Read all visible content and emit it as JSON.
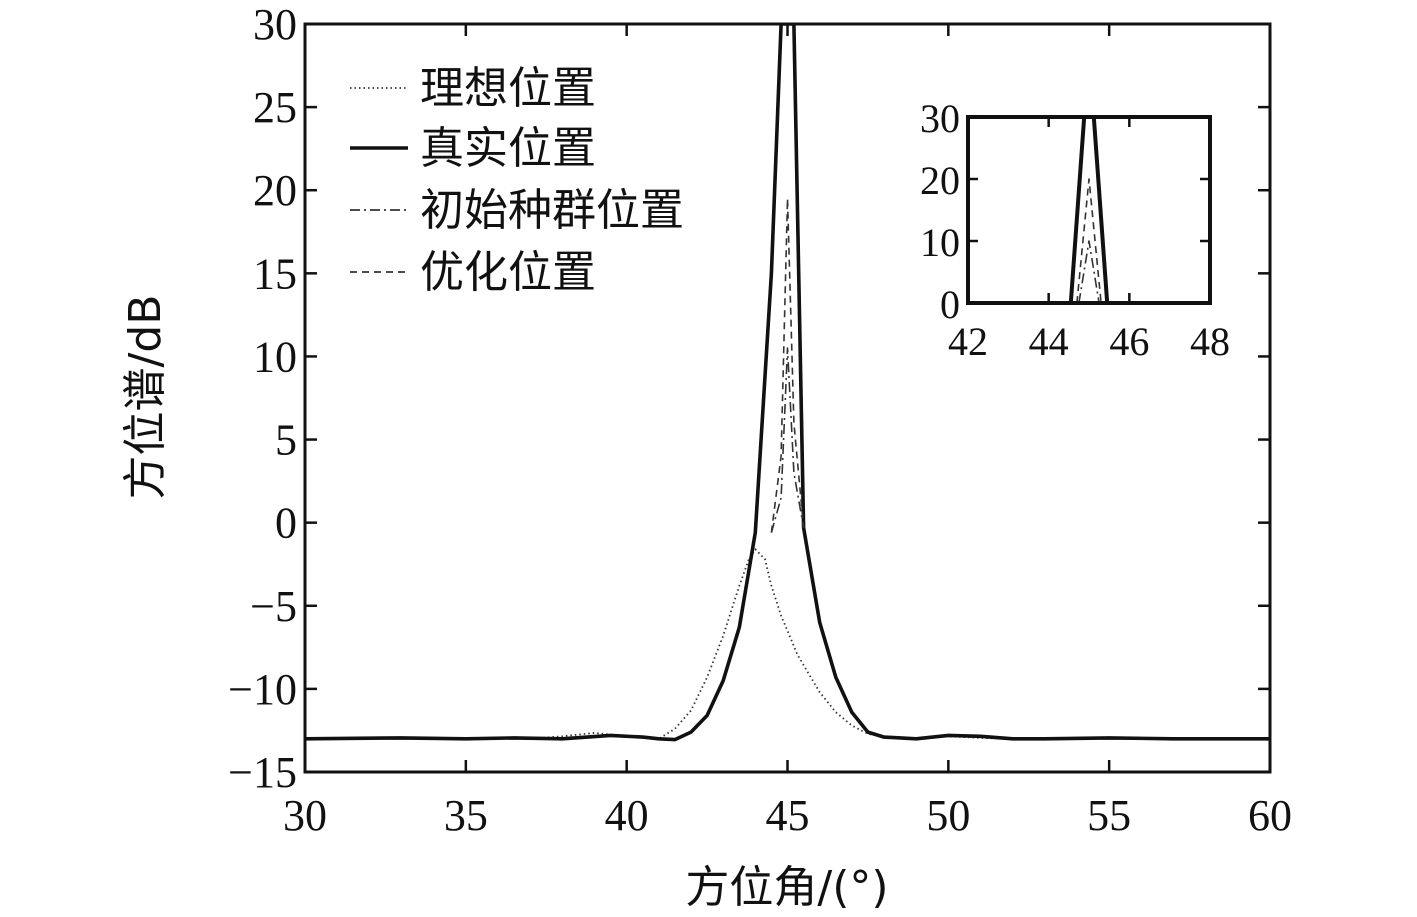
{
  "chart_data": [
    {
      "type": "line",
      "title": "",
      "xlabel": "方位角/(°)",
      "ylabel": "方位谱/dB",
      "xlim": [
        30,
        60
      ],
      "ylim": [
        -15,
        30
      ],
      "xticks": [
        30,
        35,
        40,
        45,
        50,
        55,
        60
      ],
      "yticks": [
        -15,
        -10,
        -5,
        0,
        5,
        10,
        15,
        20,
        25,
        30
      ],
      "xtick_labels": [
        "30",
        "35",
        "40",
        "45",
        "50",
        "55",
        "60"
      ],
      "ytick_labels": [
        "−15",
        "−10",
        "−5",
        "0",
        "5",
        "10",
        "15",
        "20",
        "25",
        "30"
      ],
      "grid": false,
      "legend_position": "top-left",
      "series": [
        {
          "name": "理想位置",
          "style": "dotted",
          "color": "#333333",
          "x": [
            30,
            33,
            35,
            37,
            38,
            39,
            40,
            41,
            41.5,
            42,
            42.5,
            43,
            43.5,
            43.8,
            44,
            44.3,
            44.5,
            44.8,
            45,
            45.3,
            45.6,
            46,
            46.5,
            47,
            47.5,
            48,
            49,
            50,
            51,
            52,
            55,
            60
          ],
          "y": [
            -13,
            -12.95,
            -12.95,
            -13,
            -12.85,
            -12.65,
            -12.85,
            -13,
            -12.4,
            -11.3,
            -9.3,
            -6.8,
            -3.8,
            -2.2,
            -1.6,
            -2.2,
            -3.8,
            -5.6,
            -6.5,
            -7.9,
            -8.9,
            -10.2,
            -11.4,
            -12.2,
            -12.7,
            -12.9,
            -13,
            -12.85,
            -12.95,
            -13,
            -12.95,
            -13
          ]
        },
        {
          "name": "真实位置",
          "style": "solid",
          "color": "#111111",
          "x": [
            30,
            33,
            35,
            36.5,
            38,
            39.5,
            40.5,
            41,
            41.5,
            42,
            42.5,
            43,
            43.5,
            44,
            44.5,
            44.8,
            45,
            45.2,
            45.5,
            46,
            46.5,
            47,
            47.5,
            48,
            49,
            50,
            51,
            52,
            53,
            55,
            57,
            60
          ],
          "y": [
            -13,
            -12.95,
            -13,
            -12.95,
            -13,
            -12.8,
            -12.9,
            -13,
            -13.05,
            -12.6,
            -11.6,
            -9.5,
            -6.3,
            -0.6,
            15,
            30,
            30,
            30,
            -0.3,
            -6,
            -9.3,
            -11.4,
            -12.6,
            -12.9,
            -13,
            -12.8,
            -12.85,
            -13,
            -13,
            -12.95,
            -13,
            -13
          ]
        },
        {
          "name": "初始种群位置",
          "style": "dashdot",
          "color": "#333333",
          "x": [
            44.5,
            44.8,
            45,
            45.2,
            45.5
          ],
          "y": [
            -0.6,
            1.5,
            10.5,
            3,
            -0.3
          ]
        },
        {
          "name": "优化位置",
          "style": "dashed",
          "color": "#333333",
          "x": [
            44.5,
            44.8,
            45,
            45.2,
            45.5
          ],
          "y": [
            -0.6,
            4,
            19.5,
            6,
            -0.3
          ]
        }
      ]
    },
    {
      "type": "line",
      "title": "",
      "xlabel": "",
      "ylabel": "",
      "xlim": [
        42,
        48
      ],
      "ylim": [
        0,
        30
      ],
      "xticks": [
        42,
        44,
        46,
        48
      ],
      "yticks": [
        0,
        10,
        20,
        30
      ],
      "xtick_labels": [
        "42",
        "44",
        "46",
        "48"
      ],
      "ytick_labels": [
        "0",
        "10",
        "20",
        "30"
      ],
      "grid": false,
      "legend_position": "none",
      "series": [
        {
          "name": "真实位置",
          "style": "solid",
          "color": "#111111",
          "x": [
            44.55,
            44.88,
            45.12,
            45.45
          ],
          "y": [
            0,
            30,
            30,
            0
          ]
        },
        {
          "name": "优化位置",
          "style": "dashed",
          "color": "#333333",
          "x": [
            44.7,
            45,
            45.3
          ],
          "y": [
            0,
            20,
            0
          ]
        },
        {
          "name": "初始种群位置",
          "style": "dashdot",
          "color": "#333333",
          "x": [
            44.75,
            45,
            45.25
          ],
          "y": [
            0,
            10,
            0
          ]
        }
      ]
    }
  ]
}
